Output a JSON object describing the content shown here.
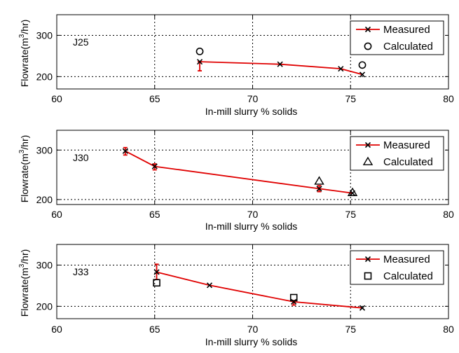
{
  "chart_data": [
    {
      "type": "line",
      "panel_label": "J25",
      "xlabel": "In-mill slurry % solids",
      "ylabel": "Flowrate(m3/hr)",
      "ylabel_parts": [
        "Flowrate(m",
        "3",
        "/hr)"
      ],
      "xlim": [
        60,
        80
      ],
      "ylim": [
        170,
        350
      ],
      "xticks": [
        60,
        65,
        70,
        75,
        80
      ],
      "yticks": [
        200,
        300
      ],
      "grid": true,
      "legend_position": "top-right",
      "series": [
        {
          "name": "Measured",
          "style": "line-cross",
          "color": "#e00000",
          "x": [
            67.3,
            71.4,
            74.5,
            75.6
          ],
          "y": [
            236,
            230,
            219,
            205
          ],
          "error_bars": [
            {
              "x": 67.3,
              "low": 214,
              "high": 236
            }
          ]
        },
        {
          "name": "Calculated",
          "style": "circle",
          "color": "#000000",
          "x": [
            67.3,
            75.6
          ],
          "y": [
            261,
            228
          ]
        }
      ]
    },
    {
      "type": "line",
      "panel_label": "J30",
      "xlabel": "In-mill slurry % solids",
      "ylabel": "Flowrate(m3/hr)",
      "ylabel_parts": [
        "Flowrate(m",
        "3",
        "/hr)"
      ],
      "xlim": [
        60,
        80
      ],
      "ylim": [
        190,
        340
      ],
      "xticks": [
        60,
        65,
        70,
        75,
        80
      ],
      "yticks": [
        200,
        300
      ],
      "grid": true,
      "legend_position": "top-right",
      "series": [
        {
          "name": "Measured",
          "style": "line-cross",
          "color": "#e00000",
          "x": [
            63.5,
            65.0,
            73.4,
            75.1
          ],
          "y": [
            298,
            267,
            222,
            213
          ],
          "error_bars": [
            {
              "x": 63.5,
              "low": 290,
              "high": 305
            },
            {
              "x": 65.0,
              "low": 260,
              "high": 272
            },
            {
              "x": 73.4,
              "low": 216,
              "high": 228
            }
          ]
        },
        {
          "name": "Calculated",
          "style": "triangle",
          "color": "#000000",
          "x": [
            73.4,
            75.1
          ],
          "y": [
            237,
            214
          ]
        }
      ]
    },
    {
      "type": "line",
      "panel_label": "J33",
      "xlabel": "In-mill slurry % solids",
      "ylabel": "Flowrate(m3/hr)",
      "ylabel_parts": [
        "Flowrate(m",
        "3",
        "/hr)"
      ],
      "xlim": [
        60,
        80
      ],
      "ylim": [
        170,
        350
      ],
      "xticks": [
        60,
        65,
        70,
        75,
        80
      ],
      "yticks": [
        200,
        300
      ],
      "grid": true,
      "legend_position": "top-right",
      "series": [
        {
          "name": "Measured",
          "style": "line-cross",
          "color": "#e00000",
          "x": [
            65.1,
            67.8,
            72.1,
            75.6
          ],
          "y": [
            283,
            251,
            211,
            196
          ],
          "error_bars": [
            {
              "x": 65.1,
              "low": 265,
              "high": 302
            },
            {
              "x": 72.1,
              "low": 203,
              "high": 214
            }
          ]
        },
        {
          "name": "Calculated",
          "style": "square",
          "color": "#000000",
          "x": [
            65.1,
            72.1
          ],
          "y": [
            257,
            221
          ]
        }
      ]
    }
  ]
}
